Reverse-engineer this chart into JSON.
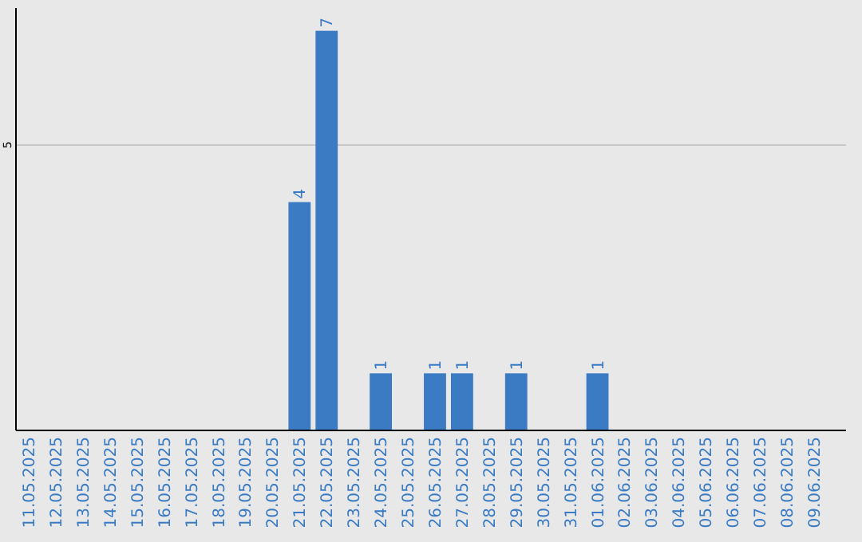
{
  "chart_data": {
    "type": "bar",
    "categories": [
      "11.05.2025",
      "12.05.2025",
      "13.05.2025",
      "14.05.2025",
      "15.05.2025",
      "16.05.2025",
      "17.05.2025",
      "18.05.2025",
      "19.05.2025",
      "20.05.2025",
      "21.05.2025",
      "22.05.2025",
      "23.05.2025",
      "24.05.2025",
      "25.05.2025",
      "26.05.2025",
      "27.05.2025",
      "28.05.2025",
      "29.05.2025",
      "30.05.2025",
      "31.05.2025",
      "01.06.2025",
      "02.06.2025",
      "03.06.2025",
      "04.06.2025",
      "05.06.2025",
      "06.06.2025",
      "07.06.2025",
      "08.06.2025",
      "09.06.2025"
    ],
    "values": [
      0,
      0,
      0,
      0,
      0,
      0,
      0,
      0,
      0,
      0,
      4,
      7,
      0,
      1,
      0,
      1,
      1,
      0,
      1,
      0,
      0,
      1,
      0,
      0,
      0,
      0,
      0,
      0,
      0,
      0
    ],
    "value_labels": [
      null,
      null,
      null,
      null,
      null,
      null,
      null,
      null,
      null,
      null,
      "4",
      "7",
      null,
      "1",
      null,
      "1",
      "1",
      null,
      "1",
      null,
      null,
      "1",
      null,
      null,
      null,
      null,
      null,
      null,
      null,
      null
    ],
    "color": "#3a7bc4",
    "ylim": [
      0,
      7.4
    ],
    "yticks": [
      5
    ],
    "grid": "y"
  }
}
